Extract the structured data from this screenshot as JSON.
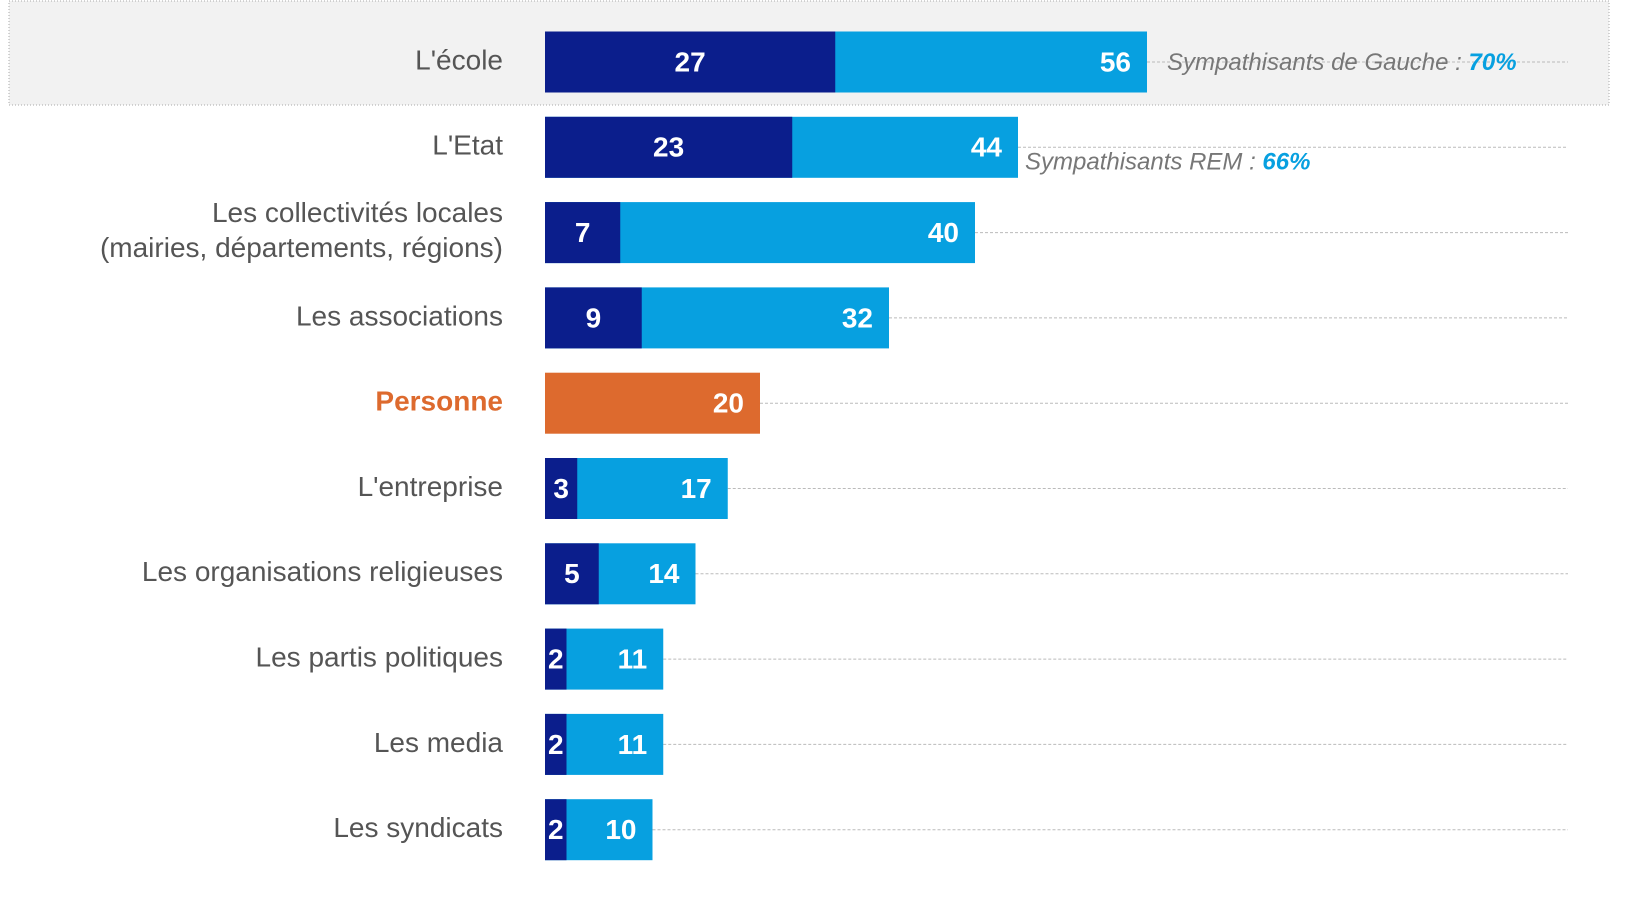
{
  "chart_data": {
    "type": "bar",
    "orientation": "horizontal",
    "overlay": true,
    "categories": [
      "L'école",
      "L'Etat",
      "Les collectivités locales\n(mairies, départements, régions)",
      "Les associations",
      "Personne",
      "L'entreprise",
      "Les organisations religieuses",
      "Les partis politiques",
      "Les media",
      "Les syndicats"
    ],
    "series": [
      {
        "color": "#07a0e0",
        "colors": [
          "#07a0e0",
          "#07a0e0",
          "#07a0e0",
          "#07a0e0",
          "#dd6a2e",
          "#07a0e0",
          "#07a0e0",
          "#07a0e0",
          "#07a0e0",
          "#07a0e0"
        ],
        "values": [
          56,
          44,
          40,
          32,
          20,
          17,
          14,
          11,
          11,
          10
        ]
      },
      {
        "color": "#0b1e8c",
        "values": [
          27,
          23,
          7,
          9,
          null,
          3,
          5,
          2,
          2,
          2
        ]
      }
    ],
    "annotations": [
      {
        "text": "Sympathisants de Gauche : ",
        "highlight": "70%"
      },
      {
        "text": "Sympathisants REM : ",
        "highlight": "66%"
      }
    ],
    "xlim": [
      0,
      56
    ]
  }
}
